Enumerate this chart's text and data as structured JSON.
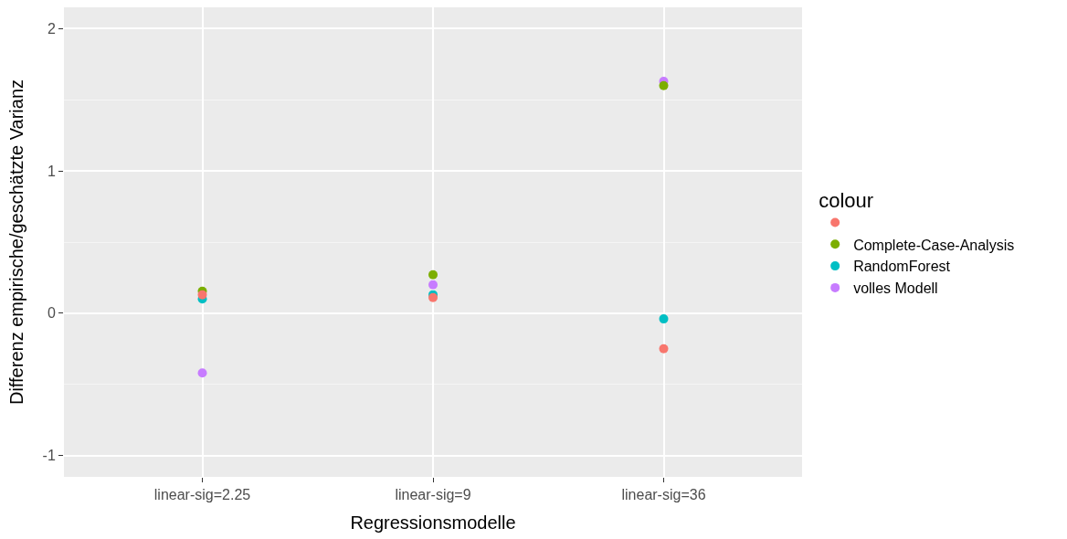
{
  "chart_data": {
    "type": "scatter",
    "xlabel": "Regressionsmodelle",
    "ylabel": "Differenz empirische/geschätzte Varianz",
    "legend_title": "colour",
    "categories": [
      "linear-sig=2.25",
      "linear-sig=9",
      "linear-sig=36"
    ],
    "series": [
      {
        "color": "#f8766d",
        "values": [
          0.13,
          0.11,
          -0.25
        ]
      },
      {
        "name": "Complete-Case-Analysis",
        "color": "#7cae00",
        "values": [
          0.155,
          0.27,
          1.6
        ]
      },
      {
        "name": "RandomForest",
        "color": "#00bfc4",
        "values": [
          0.1,
          0.13,
          -0.04
        ]
      },
      {
        "name": "volles Modell",
        "color": "#c77cff",
        "values": [
          -0.42,
          0.2,
          1.63
        ]
      }
    ],
    "ylim": [
      -1.15,
      2.15
    ],
    "yticks": [
      -1,
      0,
      1,
      2
    ],
    "grid": true,
    "legend": "right",
    "marker": "circle"
  }
}
